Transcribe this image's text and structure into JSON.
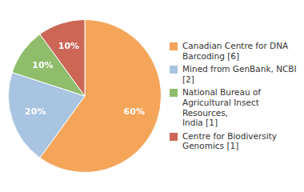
{
  "chart_data": {
    "type": "pie",
    "categories": [
      "Canadian Centre for DNA\nBarcoding [6]",
      "Mined from GenBank, NCBI [2]",
      "National Bureau of\nAgricultural Insect Resources,\nIndia [1]",
      "Centre for Biodiversity\nGenomics [1]"
    ],
    "values": [
      60,
      20,
      10,
      10
    ],
    "value_labels": [
      "60%",
      "20%",
      "10%",
      "10%"
    ],
    "colors": [
      "#F5A55A",
      "#A8C4E0",
      "#8FBD6B",
      "#CC6655"
    ],
    "data_labels": true,
    "legend": "right"
  }
}
